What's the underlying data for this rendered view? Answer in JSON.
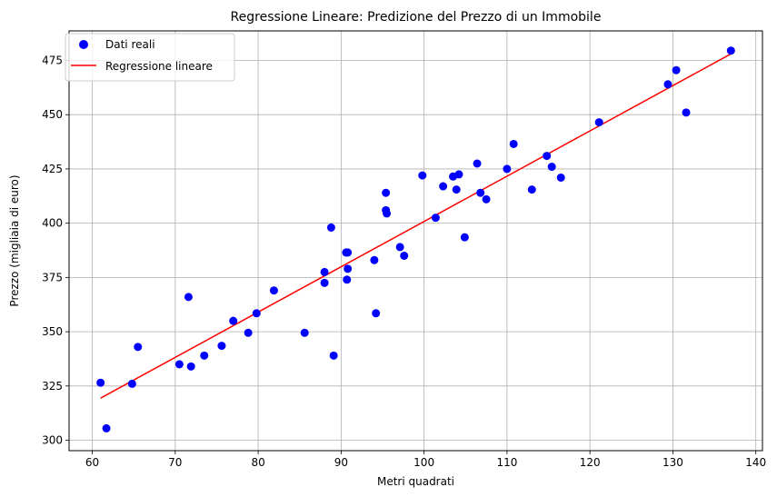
{
  "chart_data": {
    "type": "scatter",
    "title": "Regressione Lineare: Predizione del Prezzo di un Immobile",
    "xlabel": "Metri quadrati",
    "ylabel": "Prezzo (migliaia di euro)",
    "xlim": [
      57.2,
      140.8
    ],
    "ylim": [
      295.2,
      488.6
    ],
    "xticks": [
      60,
      70,
      80,
      90,
      100,
      110,
      120,
      130,
      140
    ],
    "yticks": [
      300,
      325,
      350,
      375,
      400,
      425,
      450,
      475
    ],
    "grid": true,
    "legend_position": "top-left",
    "colors": {
      "points": "#0000ff",
      "line": "#ff0000",
      "grid": "#b0b0b0"
    },
    "series": [
      {
        "name": "Dati reali",
        "kind": "scatter",
        "points": [
          [
            61.0,
            326.5
          ],
          [
            61.7,
            305.5
          ],
          [
            64.8,
            326.0
          ],
          [
            65.5,
            343.0
          ],
          [
            70.5,
            335.0
          ],
          [
            71.6,
            366.0
          ],
          [
            71.9,
            334.0
          ],
          [
            73.5,
            339.0
          ],
          [
            75.6,
            343.5
          ],
          [
            77.0,
            355.0
          ],
          [
            78.8,
            349.5
          ],
          [
            79.8,
            358.5
          ],
          [
            81.9,
            369.0
          ],
          [
            85.6,
            349.5
          ],
          [
            88.0,
            377.5
          ],
          [
            88.0,
            372.5
          ],
          [
            88.8,
            398.0
          ],
          [
            89.1,
            339.0
          ],
          [
            90.6,
            386.5
          ],
          [
            90.7,
            374.0
          ],
          [
            90.8,
            379.0
          ],
          [
            90.8,
            386.5
          ],
          [
            94.0,
            383.0
          ],
          [
            94.2,
            358.5
          ],
          [
            95.4,
            414.0
          ],
          [
            95.4,
            406.0
          ],
          [
            95.5,
            404.5
          ],
          [
            97.1,
            389.0
          ],
          [
            97.6,
            385.0
          ],
          [
            99.8,
            422.0
          ],
          [
            101.4,
            402.5
          ],
          [
            102.3,
            417.0
          ],
          [
            103.5,
            421.5
          ],
          [
            103.9,
            415.5
          ],
          [
            104.2,
            422.5
          ],
          [
            104.9,
            393.5
          ],
          [
            106.4,
            427.5
          ],
          [
            106.8,
            414.0
          ],
          [
            107.5,
            411.0
          ],
          [
            110.0,
            425.0
          ],
          [
            110.8,
            436.5
          ],
          [
            113.0,
            415.5
          ],
          [
            114.8,
            431.0
          ],
          [
            115.4,
            426.0
          ],
          [
            116.5,
            421.0
          ],
          [
            121.1,
            446.5
          ],
          [
            129.4,
            464.0
          ],
          [
            130.4,
            470.5
          ],
          [
            131.6,
            451.0
          ],
          [
            137.0,
            479.5
          ]
        ]
      },
      {
        "name": "Regressione lineare",
        "kind": "line",
        "points": [
          [
            61.0,
            319.4
          ],
          [
            137.0,
            478.0
          ]
        ]
      }
    ]
  }
}
